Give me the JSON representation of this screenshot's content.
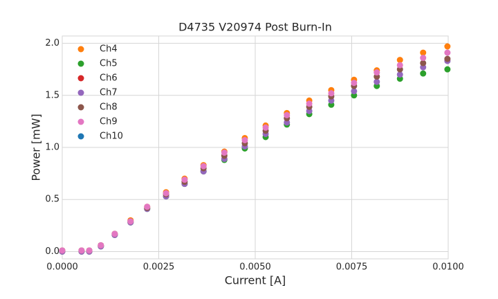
{
  "chart_data": {
    "type": "scatter",
    "title": "D4735 V20974 Post Burn-In",
    "x_label": "Current [A]",
    "y_label": "Power [mW]",
    "x": [
      0,
      0.0005,
      0.0007,
      0.001,
      0.00136,
      0.00177,
      0.0022,
      0.00269,
      0.00317,
      0.00366,
      0.0042,
      0.00473,
      0.00527,
      0.00582,
      0.0064,
      0.00697,
      0.00756,
      0.00815,
      0.00875,
      0.00935,
      0.00998
    ],
    "series": [
      {
        "name": "Ch4",
        "color": "#ff7f0e",
        "values": [
          0.01,
          0.01,
          0.01,
          0.06,
          0.17,
          0.3,
          0.43,
          0.57,
          0.7,
          0.83,
          0.96,
          1.09,
          1.21,
          1.33,
          1.45,
          1.55,
          1.65,
          1.74,
          1.84,
          1.91,
          1.97
        ]
      },
      {
        "name": "Ch5",
        "color": "#2ca02c",
        "values": [
          0.0,
          0.0,
          0.0,
          0.05,
          0.16,
          0.28,
          0.41,
          0.53,
          0.65,
          0.77,
          0.88,
          0.99,
          1.1,
          1.22,
          1.32,
          1.41,
          1.5,
          1.59,
          1.66,
          1.71,
          1.75
        ]
      },
      {
        "name": "Ch6",
        "color": "#d62728",
        "values": [
          null,
          null,
          null,
          null,
          null,
          null,
          null,
          null,
          null,
          null,
          null,
          null,
          null,
          null,
          null,
          null,
          null,
          null,
          null,
          null,
          null
        ]
      },
      {
        "name": "Ch7",
        "color": "#9467bd",
        "values": [
          0.0,
          0.0,
          0.0,
          0.05,
          0.16,
          0.28,
          0.41,
          0.53,
          0.65,
          0.77,
          0.89,
          1.01,
          1.13,
          1.24,
          1.35,
          1.45,
          1.54,
          1.63,
          1.7,
          1.77,
          1.83
        ]
      },
      {
        "name": "Ch8",
        "color": "#8c564b",
        "values": [
          0.01,
          0.01,
          0.01,
          0.06,
          0.17,
          0.29,
          0.42,
          0.55,
          0.67,
          0.8,
          0.92,
          1.04,
          1.16,
          1.28,
          1.39,
          1.49,
          1.59,
          1.68,
          1.75,
          1.81,
          1.85
        ]
      },
      {
        "name": "Ch9",
        "color": "#e377c2",
        "values": [
          0.01,
          0.01,
          0.01,
          0.06,
          0.17,
          0.29,
          0.43,
          0.56,
          0.69,
          0.82,
          0.95,
          1.07,
          1.19,
          1.31,
          1.42,
          1.52,
          1.62,
          1.72,
          1.79,
          1.86,
          1.91
        ]
      },
      {
        "name": "Ch10",
        "color": "#1f77b4",
        "values": [
          null,
          null,
          null,
          null,
          null,
          null,
          null,
          null,
          null,
          null,
          null,
          null,
          null,
          null,
          null,
          null,
          null,
          null,
          null,
          null,
          null
        ]
      }
    ],
    "xlim": [
      0,
      0.01
    ],
    "ylim": [
      -0.07,
      2.07
    ],
    "xticks": [
      {
        "value": 0,
        "label": "0.0000"
      },
      {
        "value": 0.0025,
        "label": "0.0025"
      },
      {
        "value": 0.005,
        "label": "0.0050"
      },
      {
        "value": 0.0075,
        "label": "0.0075"
      },
      {
        "value": 0.01,
        "label": "0.0100"
      }
    ],
    "yticks": [
      {
        "value": 0,
        "label": "0.0"
      },
      {
        "value": 0.5,
        "label": "0.5"
      },
      {
        "value": 1,
        "label": "1.0"
      },
      {
        "value": 1.5,
        "label": "1.5"
      },
      {
        "value": 2,
        "label": "2.0"
      }
    ],
    "grid": true,
    "legend": "upper left"
  }
}
